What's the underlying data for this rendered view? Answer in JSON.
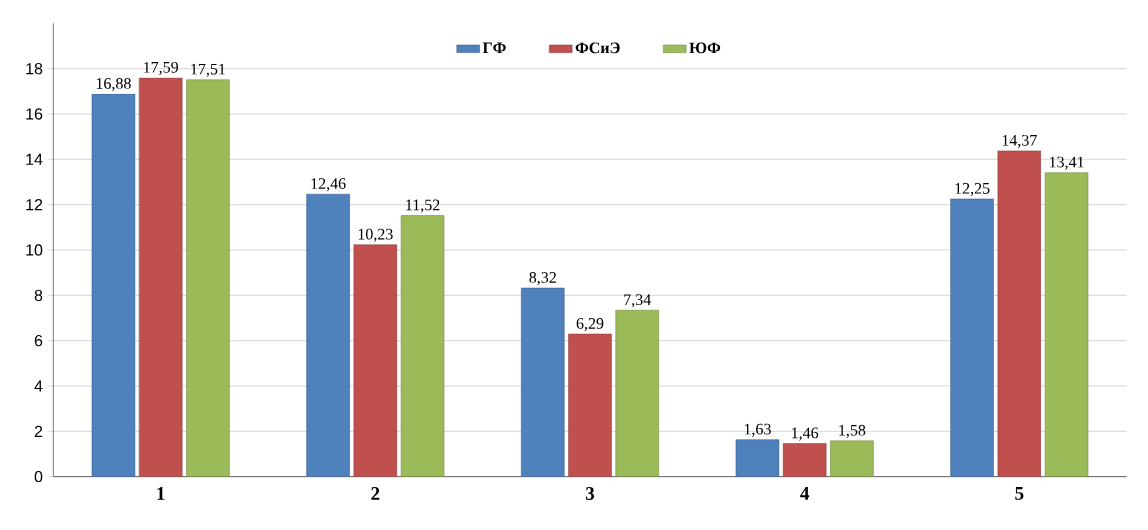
{
  "chart_data": {
    "type": "bar",
    "categories": [
      "1",
      "2",
      "3",
      "4",
      "5"
    ],
    "series": [
      {
        "name": "ГФ",
        "color": "#4f81bd",
        "values": [
          16.88,
          12.46,
          8.32,
          1.63,
          12.25
        ],
        "value_labels": [
          "16,88",
          "12,46",
          "8,32",
          "1,63",
          "12,25"
        ]
      },
      {
        "name": "ФСиЭ",
        "color": "#c0504d",
        "values": [
          17.59,
          10.23,
          6.29,
          1.46,
          14.37
        ],
        "value_labels": [
          "17,59",
          "10,23",
          "6,29",
          "1,46",
          "14,37"
        ]
      },
      {
        "name": "ЮФ",
        "color": "#9bbb59",
        "values": [
          17.51,
          11.52,
          7.34,
          1.58,
          13.41
        ],
        "value_labels": [
          "17,51",
          "11,52",
          "7,34",
          "1,58",
          "13,41"
        ]
      }
    ],
    "ylim": [
      0,
      20
    ],
    "yticks": [
      0,
      2,
      4,
      6,
      8,
      10,
      12,
      14,
      16,
      18
    ],
    "grid": "y",
    "legend": "top"
  }
}
